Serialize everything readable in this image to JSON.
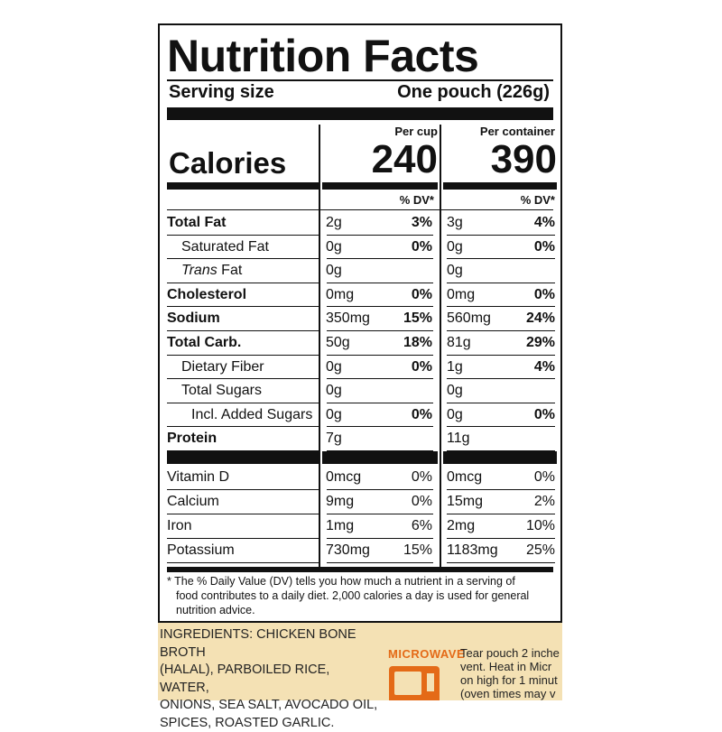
{
  "title": "Nutrition Facts",
  "serving": {
    "label": "Serving size",
    "value": "One pouch (226g)"
  },
  "calories": {
    "label": "Calories",
    "col1_header": "Per cup",
    "col2_header": "Per container",
    "col1": "240",
    "col2": "390"
  },
  "dv_header": "% DV*",
  "nutrients": [
    {
      "name": "Total Fat",
      "bold": true,
      "a1": "2g",
      "p1": "3%",
      "a2": "3g",
      "p2": "4%"
    },
    {
      "name": "Saturated Fat",
      "indent": 1,
      "a1": "0g",
      "p1": "0%",
      "a2": "0g",
      "p2": "0%"
    },
    {
      "name_italic": "Trans",
      "name": " Fat",
      "indent": 1,
      "a1": "0g",
      "p1": "",
      "a2": "0g",
      "p2": ""
    },
    {
      "name": "Cholesterol",
      "bold": true,
      "a1": "0mg",
      "p1": "0%",
      "a2": "0mg",
      "p2": "0%"
    },
    {
      "name": "Sodium",
      "bold": true,
      "a1": "350mg",
      "p1": "15%",
      "a2": "560mg",
      "p2": "24%"
    },
    {
      "name": "Total Carb.",
      "bold": true,
      "a1": "50g",
      "p1": "18%",
      "a2": "81g",
      "p2": "29%"
    },
    {
      "name": "Dietary Fiber",
      "indent": 1,
      "a1": "0g",
      "p1": "0%",
      "a2": "1g",
      "p2": "4%"
    },
    {
      "name": "Total Sugars",
      "indent": 1,
      "a1": "0g",
      "p1": "",
      "a2": "0g",
      "p2": ""
    },
    {
      "name": "Incl. Added Sugars",
      "indent": 2,
      "a1": "0g",
      "p1": "0%",
      "a2": "0g",
      "p2": "0%"
    },
    {
      "name": "Protein",
      "bold": true,
      "a1": "7g",
      "p1": "",
      "a2": "11g",
      "p2": ""
    }
  ],
  "vitamins": [
    {
      "name": "Vitamin D",
      "a1": "0mcg",
      "p1": "0%",
      "a2": "0mcg",
      "p2": "0%"
    },
    {
      "name": "Calcium",
      "a1": "9mg",
      "p1": "0%",
      "a2": "15mg",
      "p2": "2%"
    },
    {
      "name": "Iron",
      "a1": "1mg",
      "p1": "6%",
      "a2": "2mg",
      "p2": "10%"
    },
    {
      "name": "Potassium",
      "a1": "730mg",
      "p1": "15%",
      "a2": "1183mg",
      "p2": "25%"
    }
  ],
  "footnote": {
    "line1": "* The % Daily Value (DV) tells you how much a nutrient in a serving of",
    "line2": "food contributes to a daily diet. 2,000 calories a day is used for general",
    "line3": "nutrition advice."
  },
  "ingredients": {
    "line1": "INGREDIENTS: CHICKEN BONE BROTH",
    "line2": "(HALAL), PARBOILED RICE, WATER,",
    "line3": "ONIONS, SEA SALT, AVOCADO OIL,",
    "line4": "SPICES, ROASTED GARLIC."
  },
  "microwave": {
    "label": "MICROWAVE",
    "line1": "Tear pouch 2 inche",
    "line2": "vent. Heat in Micr",
    "line3": "on high for 1 minut",
    "line4": "(oven times may v"
  },
  "colors": {
    "ink": "#111111",
    "panel": "#f4e1b4",
    "accent": "#e46a17"
  }
}
